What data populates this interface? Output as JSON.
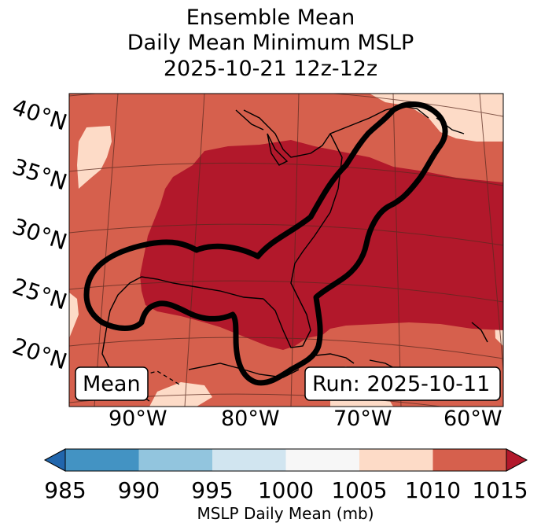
{
  "title": {
    "line1": "Ensemble Mean",
    "line2": "Daily Mean Minimum MSLP",
    "line3": "2025-10-21 12z-12z"
  },
  "map": {
    "lat_labels": [
      "40°N",
      "35°N",
      "30°N",
      "25°N",
      "20°N"
    ],
    "lon_labels": [
      "90°W",
      "80°W",
      "70°W",
      "60°W"
    ],
    "mean_box": "Mean",
    "run_box": "Run: 2025-10-11",
    "colors": {
      "low_1005_1010": "#fddbc7",
      "mid_1010_1015": "#d6604d",
      "high_over_1015": "#b2182b",
      "outline": "#000000"
    }
  },
  "colorbar": {
    "label": "MSLP Daily Mean (mb)",
    "ticks": [
      "985",
      "990",
      "995",
      "1000",
      "1005",
      "1010",
      "1015"
    ],
    "colors": [
      "#2166ac",
      "#4393c3",
      "#92c5de",
      "#d1e5f0",
      "#f7f7f7",
      "#fddbc7",
      "#d6604d",
      "#b2182b"
    ]
  }
}
